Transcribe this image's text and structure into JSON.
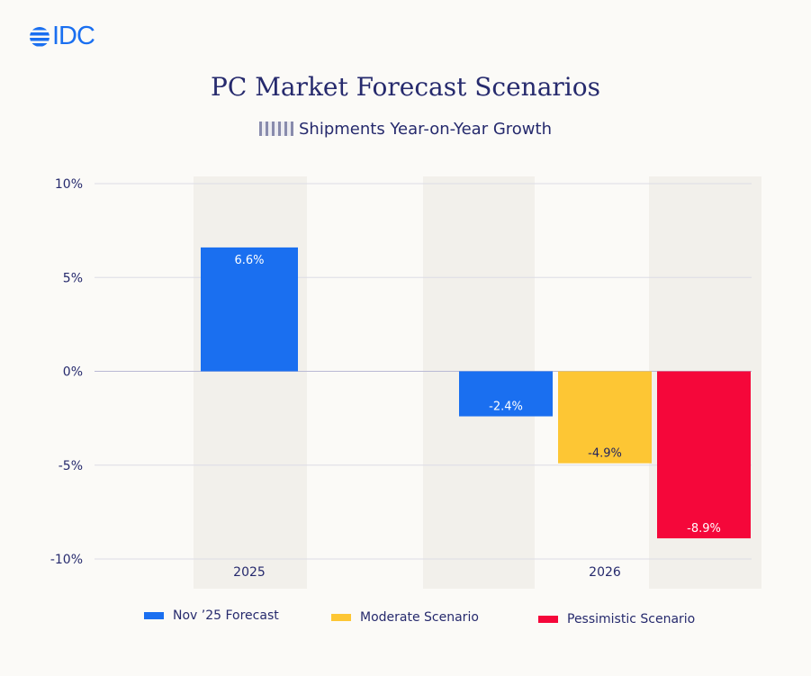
{
  "logo": {
    "text": "IDC",
    "color": "#1a6ff0"
  },
  "title": "PC Market Forecast Scenarios",
  "subtitle": "Shipments Year-on-Year Growth",
  "chart_data": {
    "type": "bar",
    "categories": [
      "2025",
      "2026"
    ],
    "series": [
      {
        "name": "Nov '25 Forecast",
        "color": "#1a6ff0",
        "values": [
          6.6,
          -2.4
        ],
        "labels": [
          "6.6%",
          "-2.4%"
        ]
      },
      {
        "name": "Moderate Scenario",
        "color": "#fdc634",
        "values": [
          null,
          -4.9
        ],
        "labels": [
          null,
          "-4.9%"
        ]
      },
      {
        "name": "Pessimistic Scenario",
        "color": "#f5073a",
        "values": [
          null,
          -8.9
        ],
        "labels": [
          null,
          "-8.9%"
        ]
      }
    ],
    "ylim": [
      -10,
      10
    ],
    "yticks": [
      10,
      5,
      0,
      -5,
      -10
    ],
    "ytick_labels": [
      "10%",
      "5%",
      "0%",
      "-5%",
      "-10%"
    ],
    "grid": true,
    "legend": "bottom"
  },
  "legend": [
    "Nov ’25 Forecast",
    "Moderate Scenario",
    "Pessimistic Scenario"
  ]
}
